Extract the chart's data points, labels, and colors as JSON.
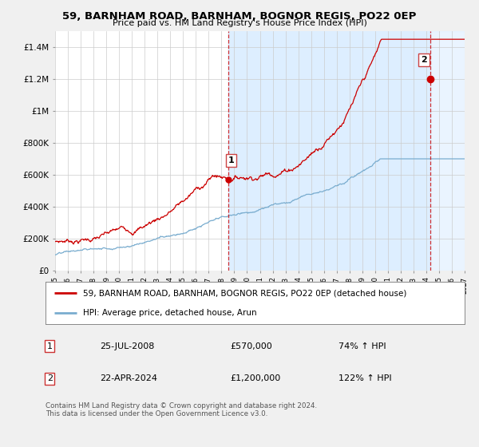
{
  "title": "59, BARNHAM ROAD, BARNHAM, BOGNOR REGIS, PO22 0EP",
  "subtitle": "Price paid vs. HM Land Registry's House Price Index (HPI)",
  "legend_label_red": "59, BARNHAM ROAD, BARNHAM, BOGNOR REGIS, PO22 0EP (detached house)",
  "legend_label_blue": "HPI: Average price, detached house, Arun",
  "annotation1_date": "25-JUL-2008",
  "annotation1_price": "£570,000",
  "annotation1_hpi": "74% ↑ HPI",
  "annotation2_date": "22-APR-2024",
  "annotation2_price": "£1,200,000",
  "annotation2_hpi": "122% ↑ HPI",
  "footer": "Contains HM Land Registry data © Crown copyright and database right 2024.\nThis data is licensed under the Open Government Licence v3.0.",
  "red_color": "#cc0000",
  "blue_color": "#7aadcf",
  "shade_color": "#ddeeff",
  "background_color": "#f0f0f0",
  "plot_bg_color": "#ffffff",
  "grid_color": "#cccccc",
  "ylim": [
    0,
    1500000
  ],
  "yticks": [
    0,
    200000,
    400000,
    600000,
    800000,
    1000000,
    1200000,
    1400000
  ],
  "ytick_labels": [
    "£0",
    "£200K",
    "£400K",
    "£600K",
    "£800K",
    "£1M",
    "£1.2M",
    "£1.4M"
  ],
  "sale1_year": 2008.56,
  "sale1_value": 570000,
  "sale2_year": 2024.31,
  "sale2_value": 1200000,
  "xstart": 1995,
  "xend": 2027
}
